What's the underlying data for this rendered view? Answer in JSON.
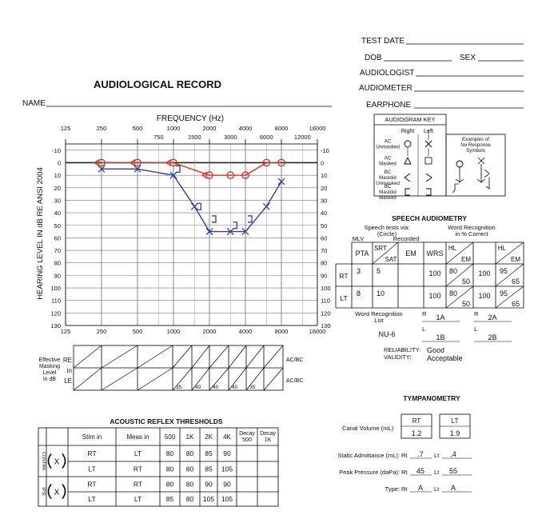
{
  "header": {
    "title": "AUDIOLOGICAL RECORD",
    "name_label": "NAME",
    "fields": [
      "TEST DATE",
      "DOB",
      "SEX",
      "AUDIOLOGIST",
      "AUDIOMETER",
      "EARPHONE"
    ]
  },
  "chart_data": {
    "type": "line",
    "xlabel": "FREQUENCY (Hz)",
    "ylabel": "HEARING LEVEL IN dB RE ANSI 2004",
    "xscale": "log",
    "y_inverted": true,
    "xlim": [
      125,
      16000
    ],
    "ylim": [
      -15,
      130
    ],
    "xticks": [
      125,
      250,
      500,
      1000,
      2000,
      4000,
      8000,
      16000
    ],
    "xticks_minor": [
      750,
      1500,
      3000,
      6000,
      12000
    ],
    "yticks": [
      -10,
      0,
      10,
      20,
      30,
      40,
      50,
      60,
      70,
      80,
      90,
      100,
      110,
      120,
      130
    ],
    "grid": true,
    "series": [
      {
        "color": "#e0301e",
        "marker": "circle",
        "line": true,
        "x": [
          250,
          500,
          1000,
          2000,
          3000,
          4000,
          6000,
          8000
        ],
        "values": [
          0,
          0,
          0,
          10,
          10,
          10,
          0,
          0
        ]
      },
      {
        "color": "#e0301e",
        "marker": "<",
        "line": false,
        "x": [
          250,
          500,
          1000,
          2000
        ],
        "values": [
          0,
          0,
          0,
          10
        ]
      },
      {
        "color": "#2b3ea8",
        "marker": "x",
        "line": true,
        "x": [
          250,
          500,
          1000,
          1500,
          2000,
          3000,
          4000,
          6000,
          8000
        ],
        "values": [
          5,
          5,
          10,
          35,
          55,
          55,
          55,
          35,
          15
        ]
      },
      {
        "color": "#2b3ea8",
        "marker": "]",
        "line": false,
        "x": [
          1000,
          1500,
          2000,
          3000,
          4000
        ],
        "values": [
          5,
          35,
          45,
          50,
          45
        ]
      }
    ]
  },
  "masking": {
    "label": [
      "Effective",
      "Masking",
      "Level",
      "in dB"
    ],
    "row_labels": [
      "RE",
      "in",
      "LE"
    ],
    "side_labels": [
      "AC/BC",
      "AC/BC"
    ],
    "le": [
      "35",
      "40",
      "40",
      "40",
      "35"
    ]
  },
  "key": {
    "title": "AUDIOGRAM KEY",
    "right": "Right",
    "left": "Left",
    "rows": [
      [
        "AC",
        "Unmasked"
      ],
      [
        "AC",
        "Masked"
      ],
      [
        "BC",
        "Mastoid",
        "Unmasked"
      ],
      [
        "BC",
        "Mastoid",
        "Masked"
      ]
    ],
    "no_response": [
      "Examples of",
      "No Response",
      "Symbols"
    ]
  },
  "speech": {
    "title": "SPEECH AUDIOMETRY",
    "via": [
      "Speech tests via:",
      "(Circle)"
    ],
    "wr": [
      "Word Recognition",
      "in % Correct"
    ],
    "options": [
      "MLV",
      "Recorded"
    ],
    "headers": {
      "pta": "PTA",
      "srt": "SRT",
      "sat": "SAT",
      "em": "EM",
      "wrs": "WRS",
      "hl": "HL",
      "hl_em": "EM"
    },
    "rows": [
      {
        "label": "RT",
        "pta": "3",
        "srt": "5",
        "wrs": "100",
        "hl": "80",
        "em": "50",
        "wrs2": "100",
        "hl2": "95",
        "em2": "65"
      },
      {
        "label": "LT",
        "pta": "8",
        "srt": "10",
        "wrs": "100",
        "hl": "80",
        "em": "50",
        "wrs2": "100",
        "hl2": "95",
        "em2": "65"
      }
    ],
    "word_list": {
      "label": [
        "Word Recognition",
        "List"
      ],
      "list": "NU-6",
      "r": "R",
      "l": "L",
      "lists": [
        [
          "1A",
          "1B"
        ],
        [
          "2A",
          "2B"
        ]
      ]
    },
    "reliability_label": "RELIABILITY:",
    "reliability": "Good",
    "validity_label": "VALIDITY:",
    "validity": "Acceptable"
  },
  "tymp": {
    "title": "TYMPANOMETRY",
    "canal_label": "Canal Volume (mL)",
    "rt": "RT",
    "lt": "LT",
    "canal": [
      "1.2",
      "1.9"
    ],
    "static_label": "Static Admittance (mL):",
    "peak_label": "Peak Pressure (daPa):",
    "type_label": "Type:",
    "rt_short": "Rt",
    "lt_short": "Lt",
    "static": [
      ".7",
      ".4"
    ],
    "peak": [
      "45",
      "55"
    ],
    "type": [
      "A",
      "A"
    ]
  },
  "reflex": {
    "title": "ACOUSTIC REFLEX THRESHOLDS",
    "headers": [
      "Stim in",
      "Meas in",
      "500",
      "1K",
      "2K",
      "4K"
    ],
    "decay_headers": [
      [
        "Decay",
        "500"
      ],
      [
        "Decay",
        "1K"
      ]
    ],
    "groups": [
      "CONTRA",
      "IPSI"
    ],
    "mark": "X",
    "rows": [
      [
        "RT",
        "LT",
        "80",
        "80",
        "85",
        "90"
      ],
      [
        "LT",
        "RT",
        "80",
        "80",
        "85",
        "105"
      ],
      [
        "RT",
        "RT",
        "80",
        "80",
        "90",
        "90"
      ],
      [
        "LT",
        "LT",
        "85",
        "80",
        "105",
        "105"
      ]
    ]
  }
}
